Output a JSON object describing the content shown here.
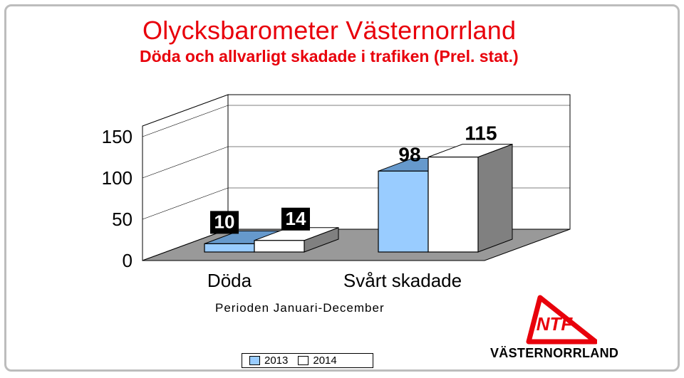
{
  "header": {
    "title": "Olycksbarometer Västernorrland",
    "subtitle": "Döda och allvarligt skadade i trafiken (Prel. stat.)"
  },
  "chart_data": {
    "type": "bar",
    "categories": [
      "Döda",
      "Svårt skadade"
    ],
    "series": [
      {
        "name": "2013",
        "values": [
          10,
          98
        ],
        "color": "#99ccff"
      },
      {
        "name": "2014",
        "values": [
          14,
          115
        ],
        "color": "#ffffff"
      }
    ],
    "value_labels": [
      [
        "10",
        "98"
      ],
      [
        "14",
        "115"
      ]
    ],
    "yticks": [
      "0",
      "50",
      "100",
      "150"
    ],
    "ylim": [
      0,
      150
    ],
    "xlabel": "Perioden Januari-December",
    "legend": "bottom",
    "grid": true,
    "style": "3d"
  },
  "legend": {
    "items": [
      {
        "label": "2013"
      },
      {
        "label": "2014"
      }
    ]
  },
  "logo": {
    "text": "NTF",
    "caption": "VÄSTERNORRLAND",
    "color": "#e8000b"
  }
}
